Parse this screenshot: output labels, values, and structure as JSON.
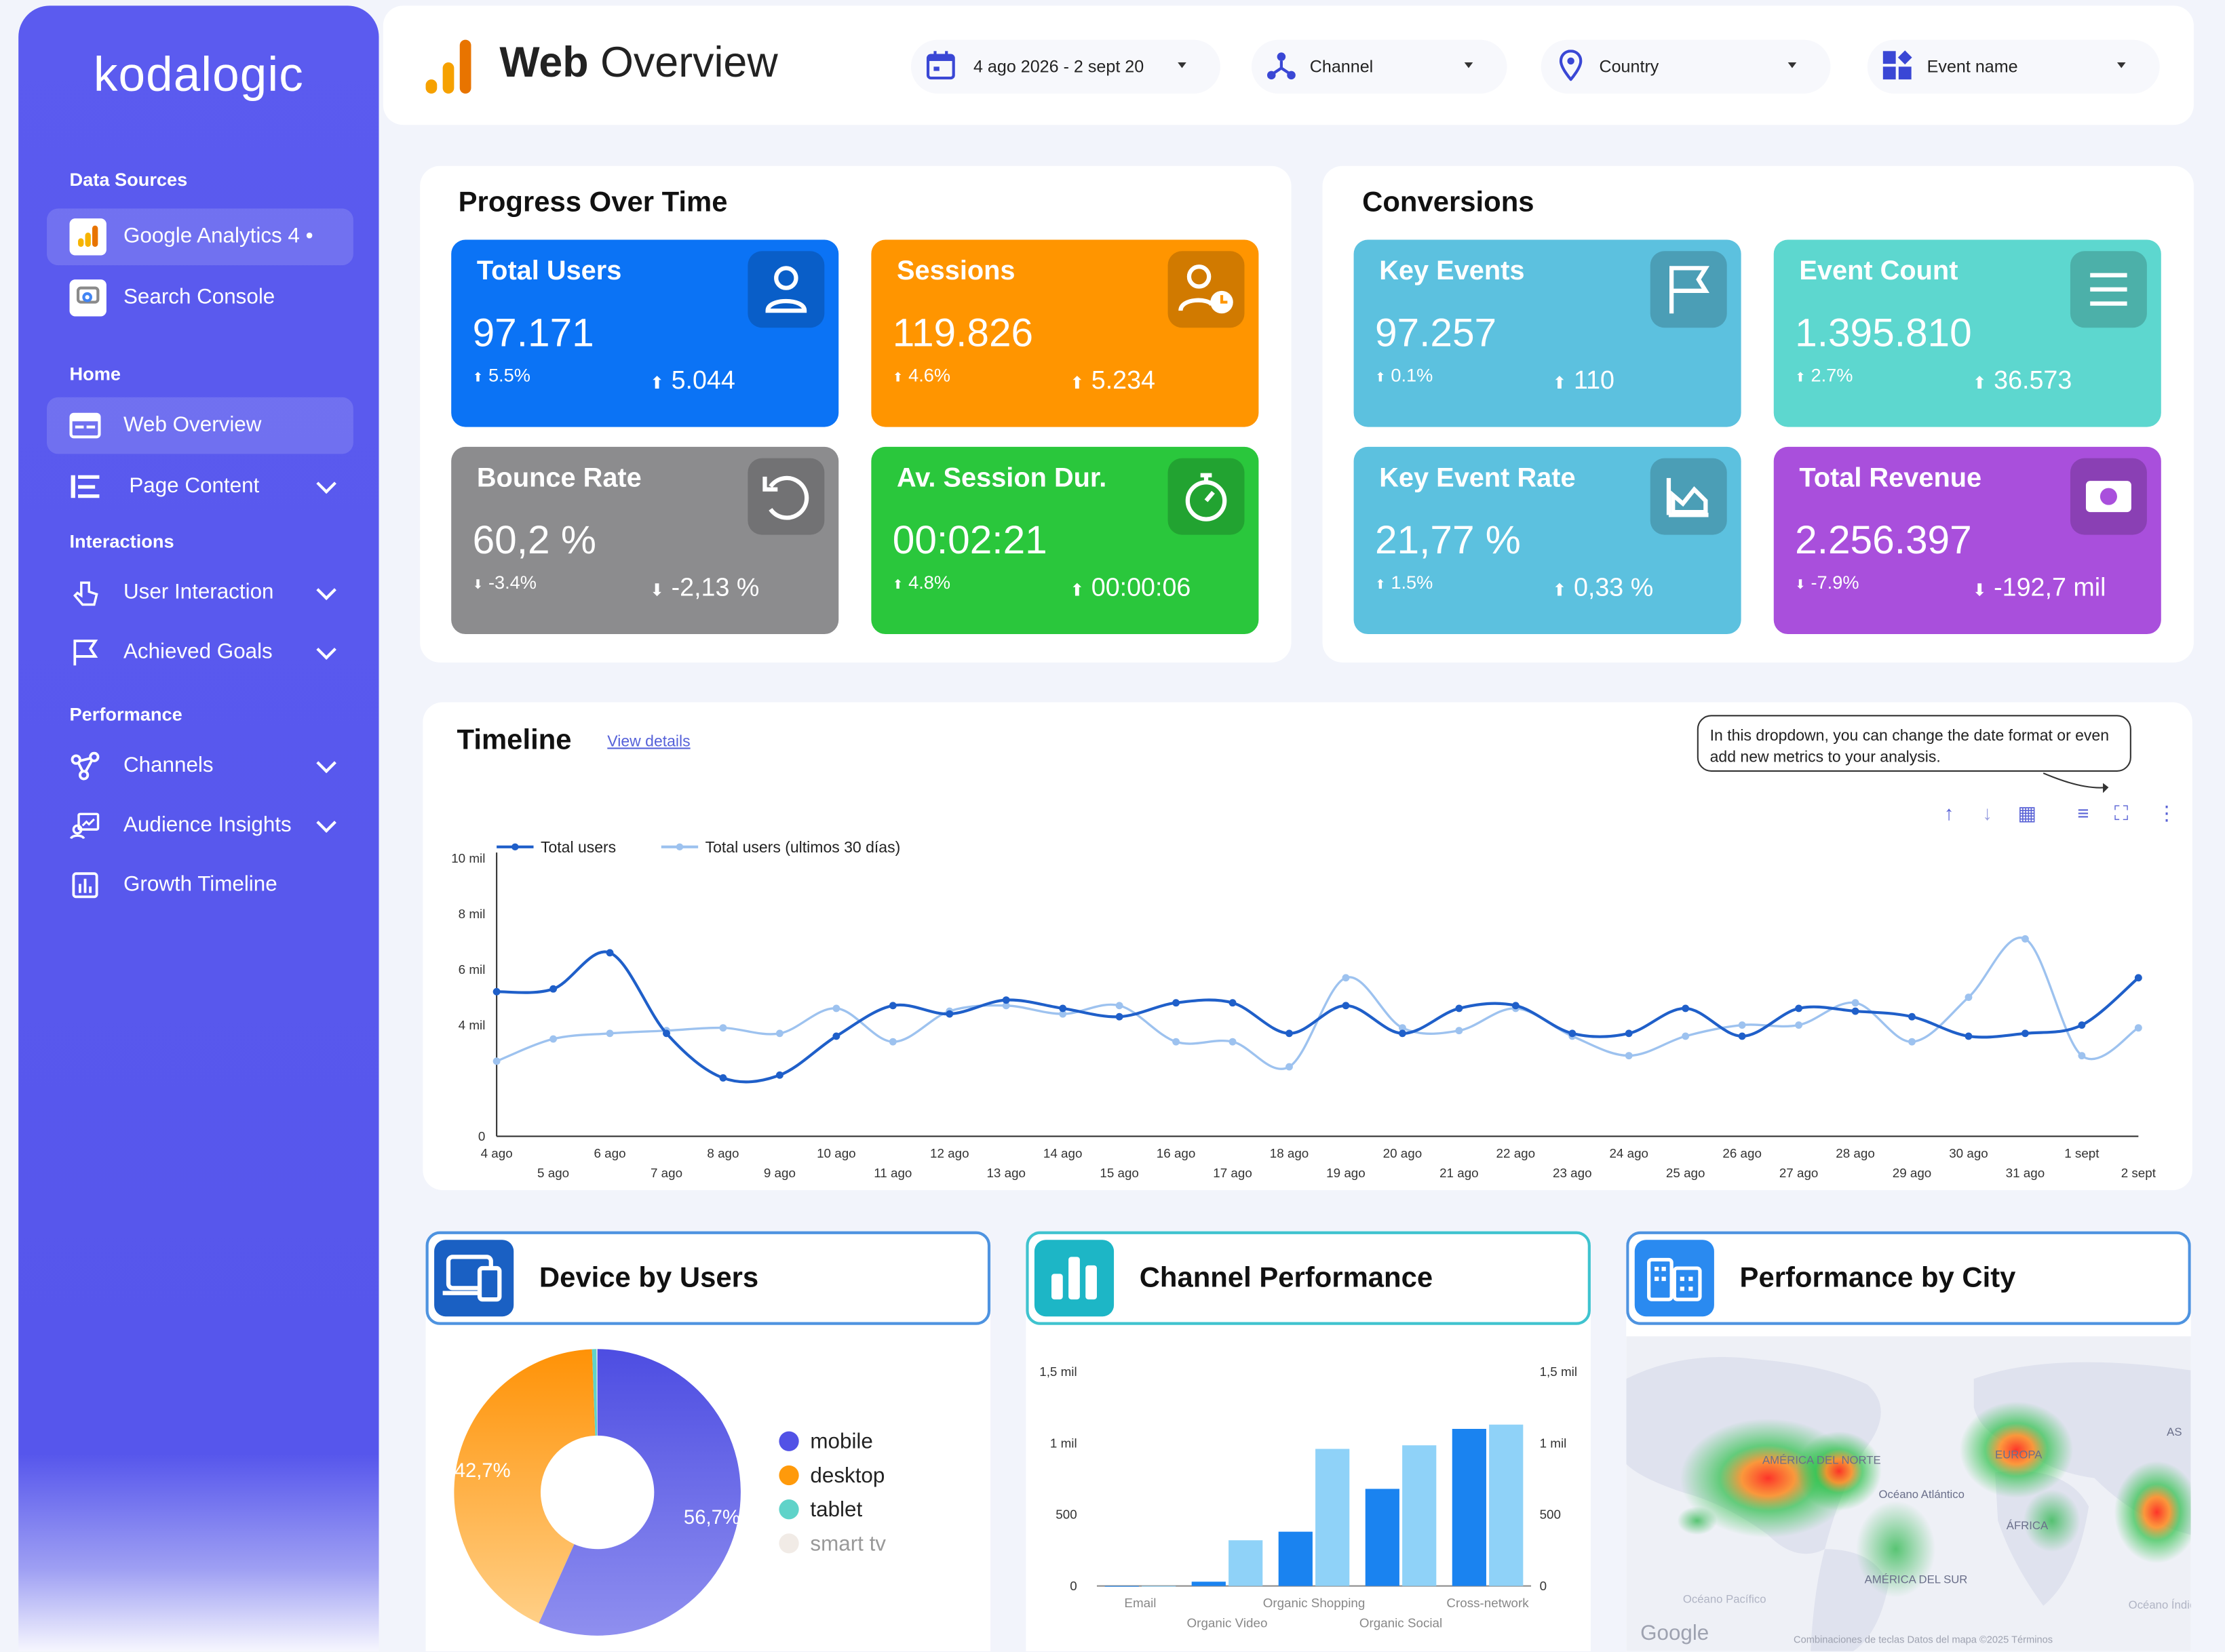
{
  "sidebar": {
    "logo": "kodalogic",
    "data_sources_label": "Data Sources",
    "sources": [
      {
        "label": "Google Analytics 4 •",
        "active": true
      },
      {
        "label": "Search Console",
        "active": false
      }
    ],
    "sections": [
      {
        "label": "Home",
        "items": [
          {
            "label": "Web Overview",
            "active": true
          },
          {
            "label": "Page Content",
            "expandable": true
          }
        ]
      },
      {
        "label": "Interactions",
        "items": [
          {
            "label": "User Interaction",
            "expandable": true
          },
          {
            "label": "Achieved Goals",
            "expandable": true
          }
        ]
      },
      {
        "label": "Performance",
        "items": [
          {
            "label": "Channels",
            "expandable": true
          },
          {
            "label": "Audience Insights",
            "expandable": true
          },
          {
            "label": "Growth Timeline",
            "expandable": false
          }
        ]
      }
    ]
  },
  "header": {
    "title_bold": "Web",
    "title_rest": " Overview",
    "filters": {
      "date": "4 ago 2026 - 2 sept 20",
      "channel": "Channel",
      "country": "Country",
      "event": "Event name"
    }
  },
  "progress": {
    "title": "Progress Over Time",
    "cards": [
      {
        "title": "Total Users",
        "value": "97.171",
        "pct": "5.5%",
        "delta": "5.044",
        "color": "#0b73f5",
        "icon": "user-icon"
      },
      {
        "title": "Sessions",
        "value": "119.826",
        "pct": "4.6%",
        "delta": "5.234",
        "color": "#ff9500",
        "icon": "user-clock-icon"
      },
      {
        "title": "Bounce Rate",
        "value": "60,2 %",
        "pct": "-3.4%",
        "delta": "-2,13 %",
        "color": "#8c8c8e",
        "icon": "undo-icon"
      },
      {
        "title": "Av. Session Dur.",
        "value": "00:02:21",
        "pct": "4.8%",
        "delta": "00:00:06",
        "color": "#2ac73c",
        "icon": "stopwatch-icon"
      }
    ]
  },
  "conversions": {
    "title": "Conversions",
    "cards": [
      {
        "title": "Key Events",
        "value": "97.257",
        "pct": "0.1%",
        "delta": "110",
        "color": "#5cc1df",
        "icon": "flag-icon"
      },
      {
        "title": "Event Count",
        "value": "1.395.810",
        "pct": "2.7%",
        "delta": "36.573",
        "color": "#5dd7cf",
        "icon": "menu-icon"
      },
      {
        "title": "Key Event Rate",
        "value": "21,77 %",
        "pct": "1.5%",
        "delta": "0,33 %",
        "color": "#5cc1df",
        "icon": "area-chart-icon"
      },
      {
        "title": "Total Revenue",
        "value": "2.256.397",
        "pct": "-7.9%",
        "delta": "-192,7 mil",
        "color": "#a94fdc",
        "icon": "money-icon"
      }
    ]
  },
  "timeline": {
    "title": "Timeline",
    "link": "View details",
    "tooltip": "In this dropdown, you can change the date format or even add new metrics to your analysis."
  },
  "chart_data": [
    {
      "type": "line",
      "legend_placement": "top-left",
      "ylim": [
        0,
        10000
      ],
      "y_ticks": [
        "0",
        "4 mil",
        "6 mil",
        "8 mil",
        "10 mil"
      ],
      "x": [
        "4 ago",
        "5 ago",
        "6 ago",
        "7 ago",
        "8 ago",
        "9 ago",
        "10 ago",
        "11 ago",
        "12 ago",
        "13 ago",
        "14 ago",
        "15 ago",
        "16 ago",
        "17 ago",
        "18 ago",
        "19 ago",
        "20 ago",
        "21 ago",
        "22 ago",
        "23 ago",
        "24 ago",
        "25 ago",
        "26 ago",
        "27 ago",
        "28 ago",
        "29 ago",
        "30 ago",
        "31 ago",
        "1 sept",
        "2 sept"
      ],
      "series": [
        {
          "name": "Total users",
          "color": "#1f5fc9",
          "values": [
            5200,
            5300,
            6600,
            3700,
            2100,
            2200,
            3600,
            4700,
            4400,
            4900,
            4600,
            4300,
            4800,
            4800,
            3700,
            4700,
            3700,
            4600,
            4700,
            3700,
            3700,
            4600,
            3600,
            4600,
            4500,
            4300,
            3600,
            3700,
            4000,
            5700
          ]
        },
        {
          "name": "Total users (ultimos 30 días)",
          "color": "#9dc2ef",
          "values": [
            2700,
            3500,
            3700,
            3800,
            3900,
            3700,
            4600,
            3400,
            4500,
            4700,
            4400,
            4700,
            3400,
            3400,
            2500,
            5700,
            3900,
            3800,
            4600,
            3600,
            2900,
            3600,
            4000,
            4000,
            4800,
            3400,
            5000,
            7100,
            2900,
            3900
          ]
        }
      ]
    },
    {
      "type": "pie",
      "title": "Device by Users",
      "labels": [
        "mobile",
        "desktop",
        "tablet",
        "smart tv"
      ],
      "values": [
        56.7,
        42.7,
        0.5,
        0.1
      ],
      "display_labels": [
        "56,7%",
        "42,7%",
        "",
        ""
      ],
      "colors": [
        "#5252e6",
        "#ff9a0b",
        "#5fd3c9",
        "#f1ebe6"
      ]
    },
    {
      "type": "bar",
      "title": "Channel Performance",
      "categories": [
        "Email",
        "Organic Video",
        "Organic Shopping",
        "Organic Social",
        "Cross-network"
      ],
      "category_labels_shown": [
        "Email",
        "Organic Video",
        "Organic Shopping",
        "Organic Social",
        "Cross-network"
      ],
      "ylim": [
        0,
        1500
      ],
      "y_ticks": [
        "0",
        "500",
        "1 mil",
        "1,5 mil"
      ],
      "series": [
        {
          "values": [
            0,
            30,
            380,
            680,
            1100
          ],
          "color": "#1a83f0"
        },
        {
          "values": [
            0,
            320,
            960,
            985,
            1130
          ],
          "color": "#8fd2f8"
        }
      ]
    }
  ],
  "city": {
    "title": "Performance by City",
    "map_labels": [
      "AMÉRICA DEL NORTE",
      "EUROPA",
      "Océano Atlántico",
      "ÁFRICA",
      "AMÉRICA DEL SUR",
      "Océano Pacífico",
      "Océano Índico",
      "AS"
    ],
    "attribution": "Combinaciones de teclas   Datos del mapa ©2025   Términos",
    "google": "Google"
  }
}
